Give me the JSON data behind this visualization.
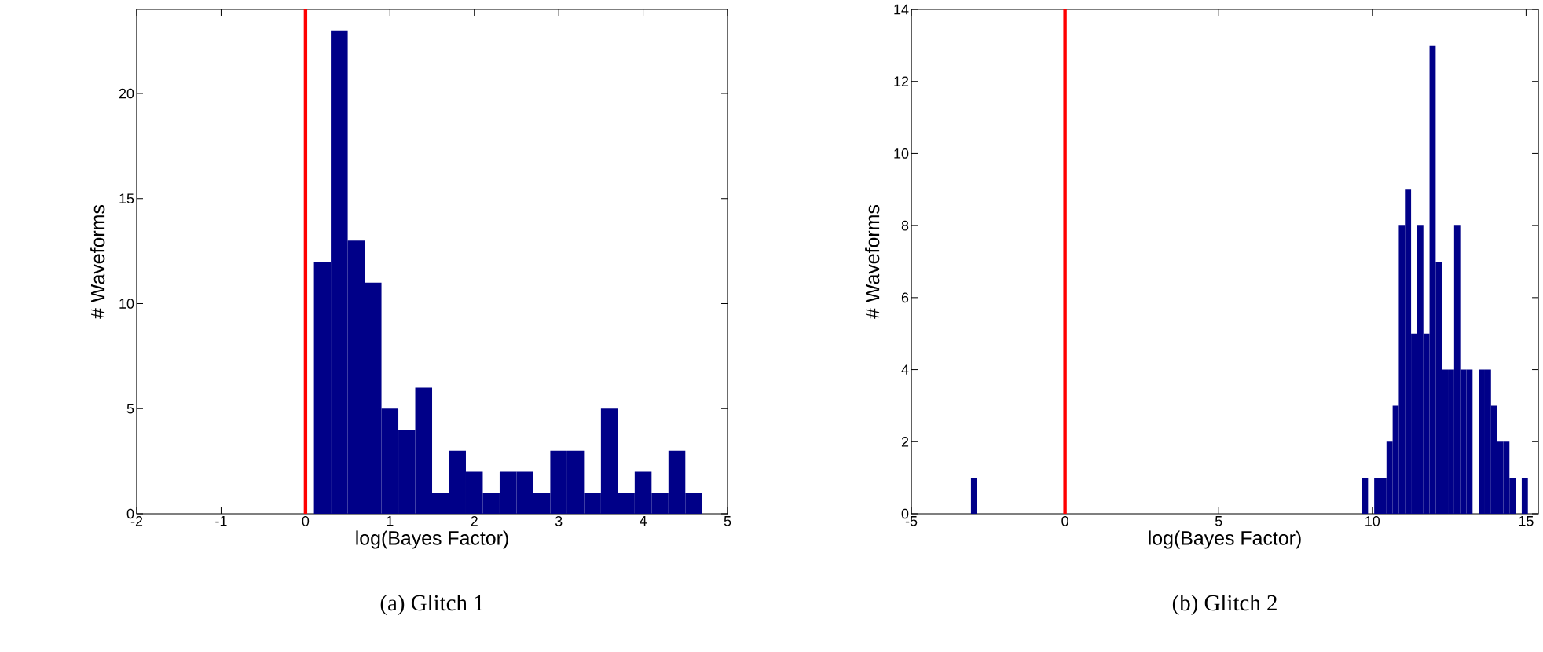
{
  "chart_data": [
    {
      "type": "histogram",
      "xlabel": "log(Bayes Factor)",
      "ylabel": "# Waveforms",
      "annotations": [
        "(a) Glitch 1"
      ],
      "bins": [
        0.1,
        0.3,
        0.5,
        0.7,
        0.9,
        1.1,
        1.3,
        1.5,
        1.7,
        1.9,
        2.1,
        2.3,
        2.5,
        2.7,
        2.9,
        3.1,
        3.3,
        3.5,
        3.7,
        3.9,
        4.1,
        4.3,
        4.5,
        4.7
      ],
      "values": [
        12,
        23,
        13,
        11,
        5,
        4,
        6,
        1,
        3,
        2,
        1,
        2,
        2,
        1,
        3,
        3,
        1,
        5,
        1,
        2,
        1,
        3,
        1
      ],
      "color": "#000088",
      "xlim": [
        -2,
        5
      ],
      "xticks": [
        -2,
        -1,
        0,
        1,
        2,
        3,
        4,
        5
      ],
      "ylim": [
        0,
        24
      ],
      "yticks": [
        0,
        5,
        10,
        15,
        20
      ],
      "ref_lines": [
        {
          "axis": "x",
          "value": 0,
          "color": "#ff0000"
        }
      ]
    },
    {
      "type": "histogram",
      "xlabel": "log(Bayes Factor)",
      "ylabel": "# Waveforms",
      "annotations": [
        "(b) Glitch 2"
      ],
      "bins": [
        -3.06,
        -2.86,
        9.66,
        9.86,
        10.06,
        10.26,
        10.46,
        10.66,
        10.86,
        11.06,
        11.26,
        11.46,
        11.66,
        11.86,
        12.06,
        12.26,
        12.46,
        12.66,
        12.86,
        13.06,
        13.26,
        13.46,
        13.66,
        13.86,
        14.06,
        14.26,
        14.46,
        14.66,
        14.86,
        15.06
      ],
      "values": [
        1,
        0,
        1,
        0,
        1,
        1,
        2,
        3,
        8,
        9,
        5,
        8,
        5,
        13,
        7,
        4,
        4,
        8,
        4,
        4,
        0,
        4,
        4,
        3,
        2,
        2,
        1,
        0,
        1
      ],
      "color": "#000088",
      "xlim": [
        -5,
        15.4
      ],
      "xticks": [
        -5,
        0,
        5,
        10,
        15
      ],
      "ylim": [
        0,
        14
      ],
      "yticks": [
        0,
        2,
        4,
        6,
        8,
        10,
        12,
        14
      ],
      "ref_lines": [
        {
          "axis": "x",
          "value": 0,
          "color": "#ff0000"
        }
      ]
    }
  ]
}
